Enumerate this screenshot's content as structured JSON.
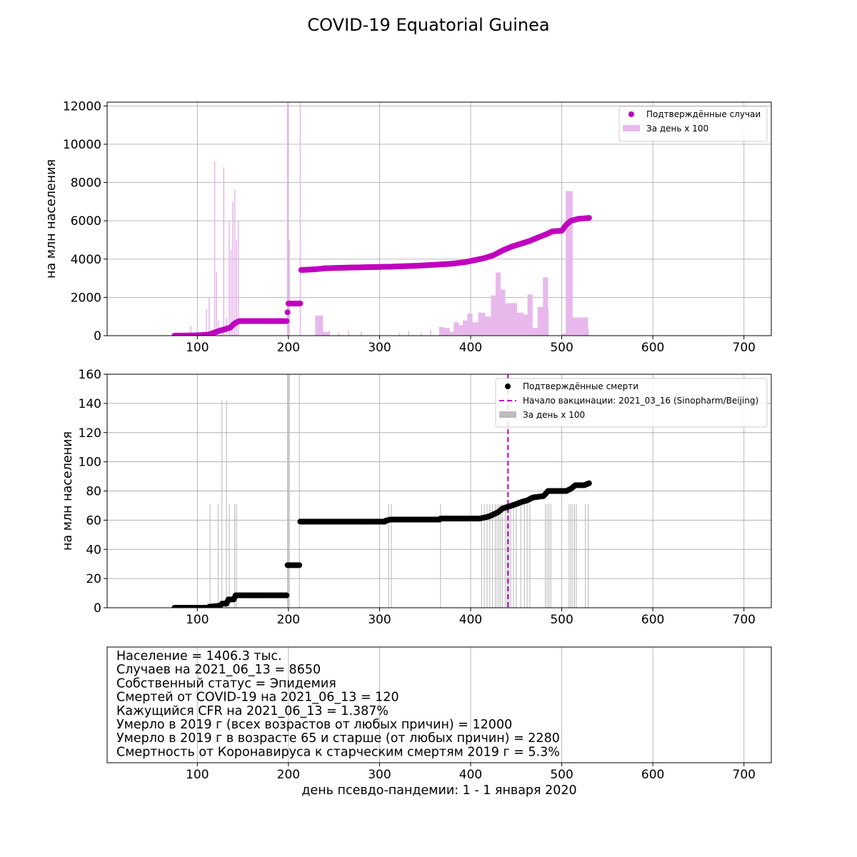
{
  "figure_title": "COVID-19 Equatorial Guinea",
  "colors": {
    "cases": "#c000c0",
    "cases_bar": "#e8b8ec",
    "deaths": "#000000",
    "deaths_bar": "#bdbdbd",
    "vaccination": "#c000c0",
    "grid": "#b0b0b0"
  },
  "info_lines": [
    "Население = 1406.3 тыс.",
    "Случаев на 2021_06_13 = 8650",
    "Собственный статус = Эпидемия",
    "Смертей от COVID-19 на 2021_06_13 = 120",
    "Кажущийся CFR на 2021_06_13 = 1.387%",
    "Умерло в 2019 г (всех возрастов от любых причин) = 12000",
    "Умерло в 2019 г в возрасте 65 и старше (от любых причин) = 2280",
    "Смертность от Коронавируса к старческим смертям 2019 г = 5.3%"
  ],
  "bottom_xlabel": "день псевдо-пандемии: 1 - 1 января 2020",
  "chart_data": [
    {
      "type": "scatter",
      "ylabel": "на млн населения",
      "xlim": [
        1,
        730
      ],
      "ylim": [
        0,
        12200
      ],
      "xticks": [
        100,
        200,
        300,
        400,
        500,
        600,
        700
      ],
      "yticks": [
        0,
        2000,
        4000,
        6000,
        8000,
        10000,
        12000
      ],
      "grid": true,
      "legend_position": "top-right",
      "series": [
        {
          "name": "Подтверждённые случаи",
          "kind": "scatter",
          "points": [
            [
              75,
              0
            ],
            [
              95,
              10
            ],
            [
              105,
              30
            ],
            [
              112,
              50
            ],
            [
              118,
              150
            ],
            [
              124,
              250
            ],
            [
              130,
              330
            ],
            [
              136,
              420
            ],
            [
              140,
              600
            ],
            [
              143,
              700
            ],
            [
              146,
              760
            ],
            [
              198,
              760
            ],
            [
              200,
              1680
            ],
            [
              213,
              1680
            ],
            [
              214,
              3430
            ],
            [
              230,
              3470
            ],
            [
              240,
              3520
            ],
            [
              260,
              3550
            ],
            [
              290,
              3580
            ],
            [
              310,
              3600
            ],
            [
              340,
              3650
            ],
            [
              360,
              3700
            ],
            [
              380,
              3760
            ],
            [
              395,
              3850
            ],
            [
              405,
              3950
            ],
            [
              415,
              4050
            ],
            [
              425,
              4200
            ],
            [
              435,
              4450
            ],
            [
              445,
              4650
            ],
            [
              455,
              4800
            ],
            [
              465,
              4950
            ],
            [
              475,
              5150
            ],
            [
              483,
              5300
            ],
            [
              490,
              5450
            ],
            [
              500,
              5480
            ],
            [
              505,
              5800
            ],
            [
              510,
              6000
            ],
            [
              518,
              6100
            ],
            [
              530,
              6150
            ]
          ]
        },
        {
          "name": "За день x 100",
          "kind": "bar",
          "points": [
            [
              93,
              500
            ],
            [
              106,
              80
            ],
            [
              110,
              1400
            ],
            [
              113,
              2000
            ],
            [
              117,
              250
            ],
            [
              119,
              9100
            ],
            [
              121,
              3300
            ],
            [
              123,
              800
            ],
            [
              127,
              300
            ],
            [
              129,
              8800
            ],
            [
              132,
              900
            ],
            [
              135,
              6000
            ],
            [
              137,
              4500
            ],
            [
              139,
              7000
            ],
            [
              141,
              7600
            ],
            [
              143,
              5000
            ],
            [
              145,
              6000
            ],
            [
              199,
              12200
            ],
            [
              201,
              5000
            ],
            [
              213,
              12200
            ],
            [
              230,
              1050
            ],
            [
              238,
              200
            ],
            [
              245,
              300
            ],
            [
              255,
              150
            ],
            [
              266,
              250
            ],
            [
              280,
              200
            ],
            [
              300,
              100
            ],
            [
              322,
              150
            ],
            [
              332,
              250
            ],
            [
              346,
              150
            ],
            [
              356,
              300
            ],
            [
              366,
              450
            ],
            [
              371,
              400
            ],
            [
              377,
              200
            ],
            [
              382,
              700
            ],
            [
              387,
              550
            ],
            [
              392,
              800
            ],
            [
              397,
              1150
            ],
            [
              402,
              700
            ],
            [
              409,
              1200
            ],
            [
              416,
              1000
            ],
            [
              423,
              2100
            ],
            [
              428,
              3300
            ],
            [
              433,
              2400
            ],
            [
              438,
              1700
            ],
            [
              444,
              1700
            ],
            [
              451,
              1200
            ],
            [
              458,
              1100
            ],
            [
              463,
              2150
            ],
            [
              468,
              400
            ],
            [
              474,
              1500
            ],
            [
              480,
              3050
            ],
            [
              485,
              1350
            ],
            [
              500,
              100
            ],
            [
              505,
              7550
            ],
            [
              512,
              950
            ],
            [
              517,
              950
            ],
            [
              524,
              950
            ],
            [
              529,
              300
            ]
          ]
        }
      ]
    },
    {
      "type": "scatter",
      "ylabel": "на млн населения",
      "xlim": [
        1,
        730
      ],
      "ylim": [
        0,
        160
      ],
      "xticks": [
        100,
        200,
        300,
        400,
        500,
        600,
        700
      ],
      "yticks": [
        0,
        20,
        40,
        60,
        80,
        100,
        120,
        140,
        160
      ],
      "grid": true,
      "legend_position": "top-right",
      "vline": {
        "x": 441,
        "label": "Начало вакцинации: 2021_03_16 (Sinopharm/Beijing)"
      },
      "series": [
        {
          "name": "Подтверждённые смерти",
          "kind": "scatter",
          "points": [
            [
              75,
              0
            ],
            [
              112,
              0
            ],
            [
              113,
              0.7
            ],
            [
              125,
              1.4
            ],
            [
              127,
              2.8
            ],
            [
              132,
              2.8
            ],
            [
              134,
              5.7
            ],
            [
              140,
              5.7
            ],
            [
              142,
              8.5
            ],
            [
              198,
              8.5
            ],
            [
              199,
              29.2
            ],
            [
              212,
              29.2
            ],
            [
              213,
              59
            ],
            [
              306,
              59
            ],
            [
              307,
              59.7
            ],
            [
              312,
              60.4
            ],
            [
              366,
              60.4
            ],
            [
              367,
              61.1
            ],
            [
              410,
              61.1
            ],
            [
              420,
              62.5
            ],
            [
              430,
              65.4
            ],
            [
              435,
              68
            ],
            [
              440,
              69
            ],
            [
              450,
              71
            ],
            [
              456,
              72.5
            ],
            [
              462,
              73.5
            ],
            [
              468,
              75.5
            ],
            [
              480,
              76.5
            ],
            [
              485,
              80
            ],
            [
              505,
              80
            ],
            [
              510,
              81.5
            ],
            [
              515,
              84
            ],
            [
              525,
              84
            ],
            [
              530,
              85.3
            ]
          ]
        },
        {
          "name": "За день x 100",
          "kind": "bar",
          "points": [
            [
              114,
              71
            ],
            [
              123,
              71
            ],
            [
              127,
              142
            ],
            [
              132,
              142
            ],
            [
              135,
              71
            ],
            [
              141,
              71
            ],
            [
              143,
              71
            ],
            [
              199,
              160
            ],
            [
              201,
              160
            ],
            [
              212,
              160
            ],
            [
              310,
              71
            ],
            [
              313,
              71
            ],
            [
              367,
              71
            ],
            [
              412,
              71
            ],
            [
              415,
              71
            ],
            [
              418,
              71
            ],
            [
              421,
              71
            ],
            [
              424,
              71
            ],
            [
              427,
              71
            ],
            [
              429,
              71
            ],
            [
              431,
              71
            ],
            [
              433,
              71
            ],
            [
              435,
              71
            ],
            [
              438,
              71
            ],
            [
              440,
              71
            ],
            [
              442,
              71
            ],
            [
              444,
              71
            ],
            [
              447,
              71
            ],
            [
              450,
              71
            ],
            [
              455,
              71
            ],
            [
              459,
              71
            ],
            [
              462,
              71
            ],
            [
              465,
              71
            ],
            [
              482,
              71
            ],
            [
              484,
              71
            ],
            [
              486,
              71
            ],
            [
              488,
              71
            ],
            [
              508,
              71
            ],
            [
              510,
              71
            ],
            [
              512,
              71
            ],
            [
              514,
              71
            ],
            [
              516,
              71
            ],
            [
              526,
              71
            ],
            [
              529,
              71
            ]
          ]
        }
      ]
    },
    {
      "type": "table",
      "xlim": [
        1,
        730
      ],
      "xticks": [
        100,
        200,
        300,
        400,
        500,
        600,
        700
      ],
      "xlabel": "день псевдо-пандемии: 1 - 1 января 2020",
      "grid": true
    }
  ]
}
